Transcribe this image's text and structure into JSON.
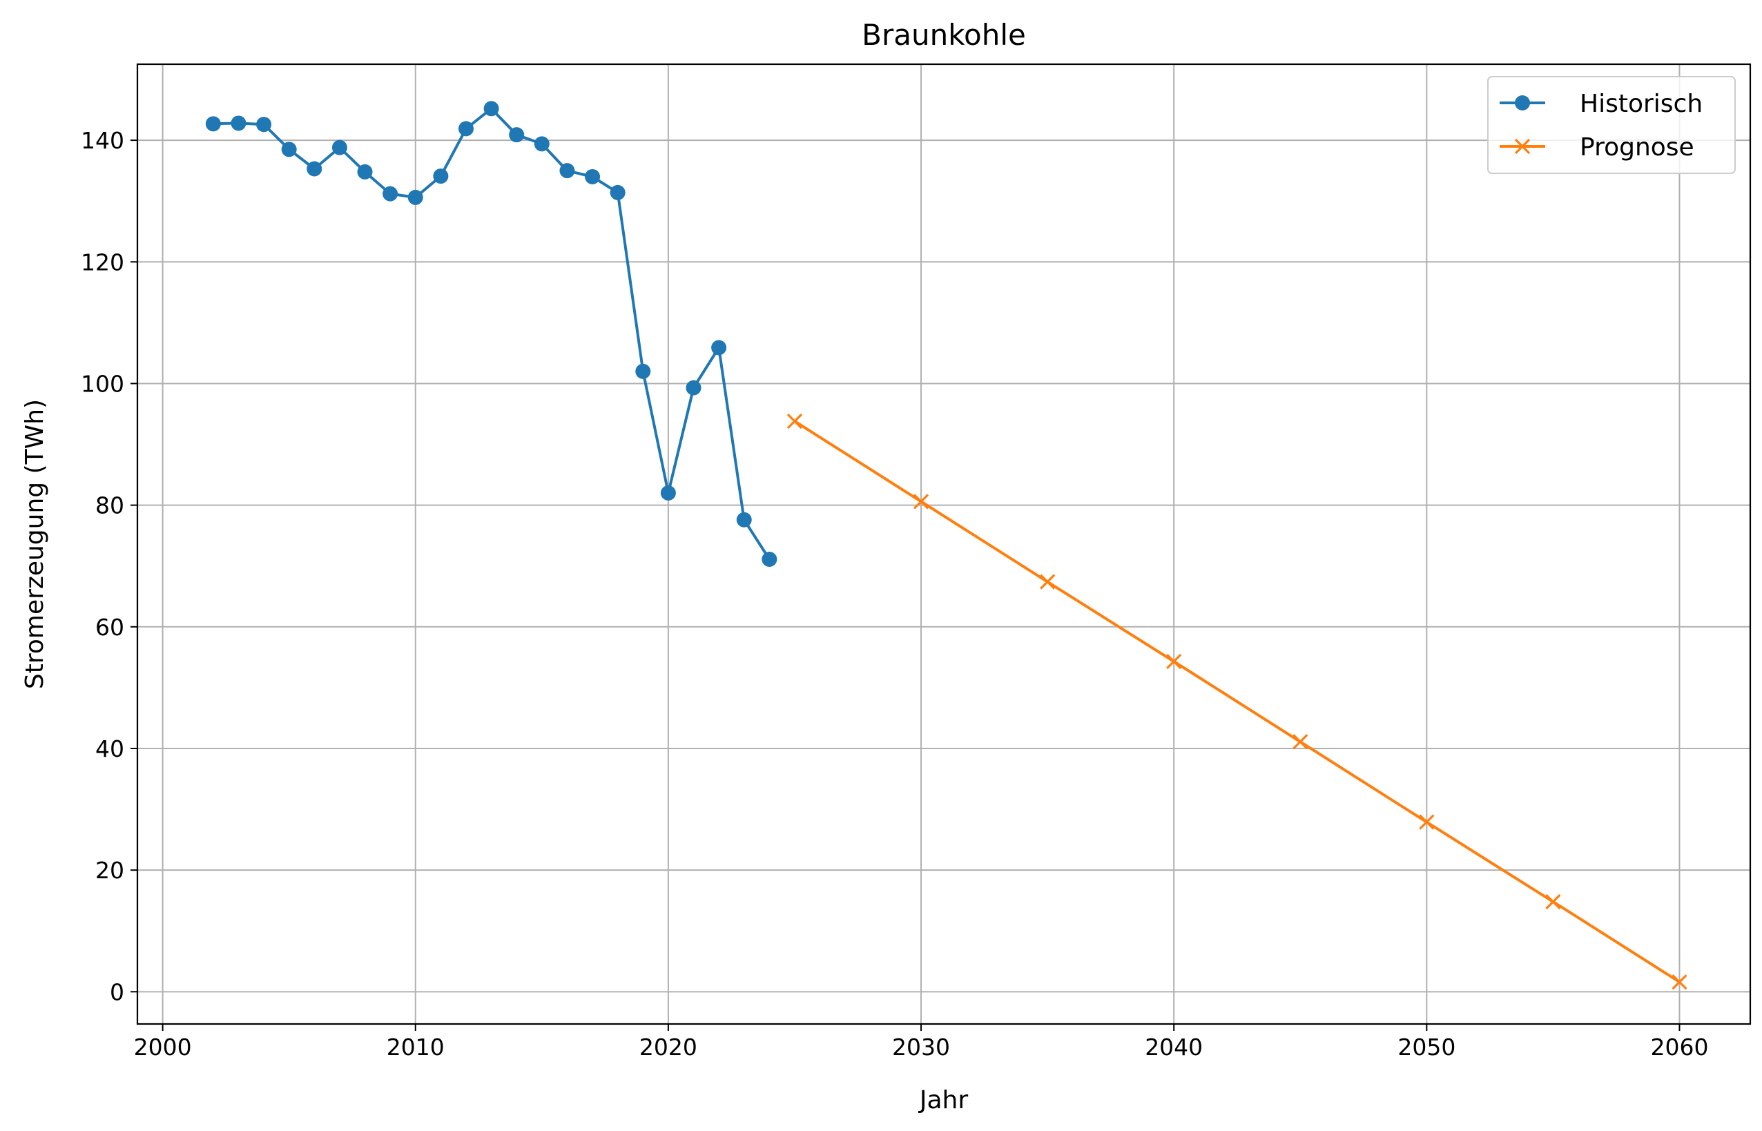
{
  "chart_data": {
    "type": "line",
    "title": "Braunkohle",
    "xlabel": "Jahr",
    "ylabel": "Stromerzeugung (TWh)",
    "xlim": [
      1999,
      2062.8
    ],
    "ylim": [
      -5.3,
      152.5
    ],
    "xticks": [
      2000,
      2010,
      2020,
      2030,
      2040,
      2050,
      2060
    ],
    "yticks": [
      0,
      20,
      40,
      60,
      80,
      100,
      120,
      140
    ],
    "grid": true,
    "legend_position": "top-right",
    "series": [
      {
        "name": "Historisch",
        "color": "#1f77b4",
        "marker": "circle",
        "x": [
          2002,
          2003,
          2004,
          2005,
          2006,
          2007,
          2008,
          2009,
          2010,
          2011,
          2012,
          2013,
          2014,
          2015,
          2016,
          2017,
          2018,
          2019,
          2020,
          2021,
          2022,
          2023,
          2024
        ],
        "y": [
          142.7,
          142.8,
          142.6,
          138.5,
          135.3,
          138.8,
          134.8,
          131.2,
          130.6,
          134.1,
          141.9,
          145.2,
          140.9,
          139.4,
          135.0,
          134.0,
          131.4,
          102.0,
          82.0,
          99.3,
          105.9,
          77.6,
          71.1
        ]
      },
      {
        "name": "Prognose",
        "color": "#ff7f0e",
        "marker": "x",
        "x": [
          2025,
          2030,
          2035,
          2040,
          2045,
          2050,
          2055,
          2060
        ],
        "y": [
          93.8,
          80.6,
          67.4,
          54.3,
          41.1,
          27.9,
          14.8,
          1.6
        ]
      }
    ]
  }
}
